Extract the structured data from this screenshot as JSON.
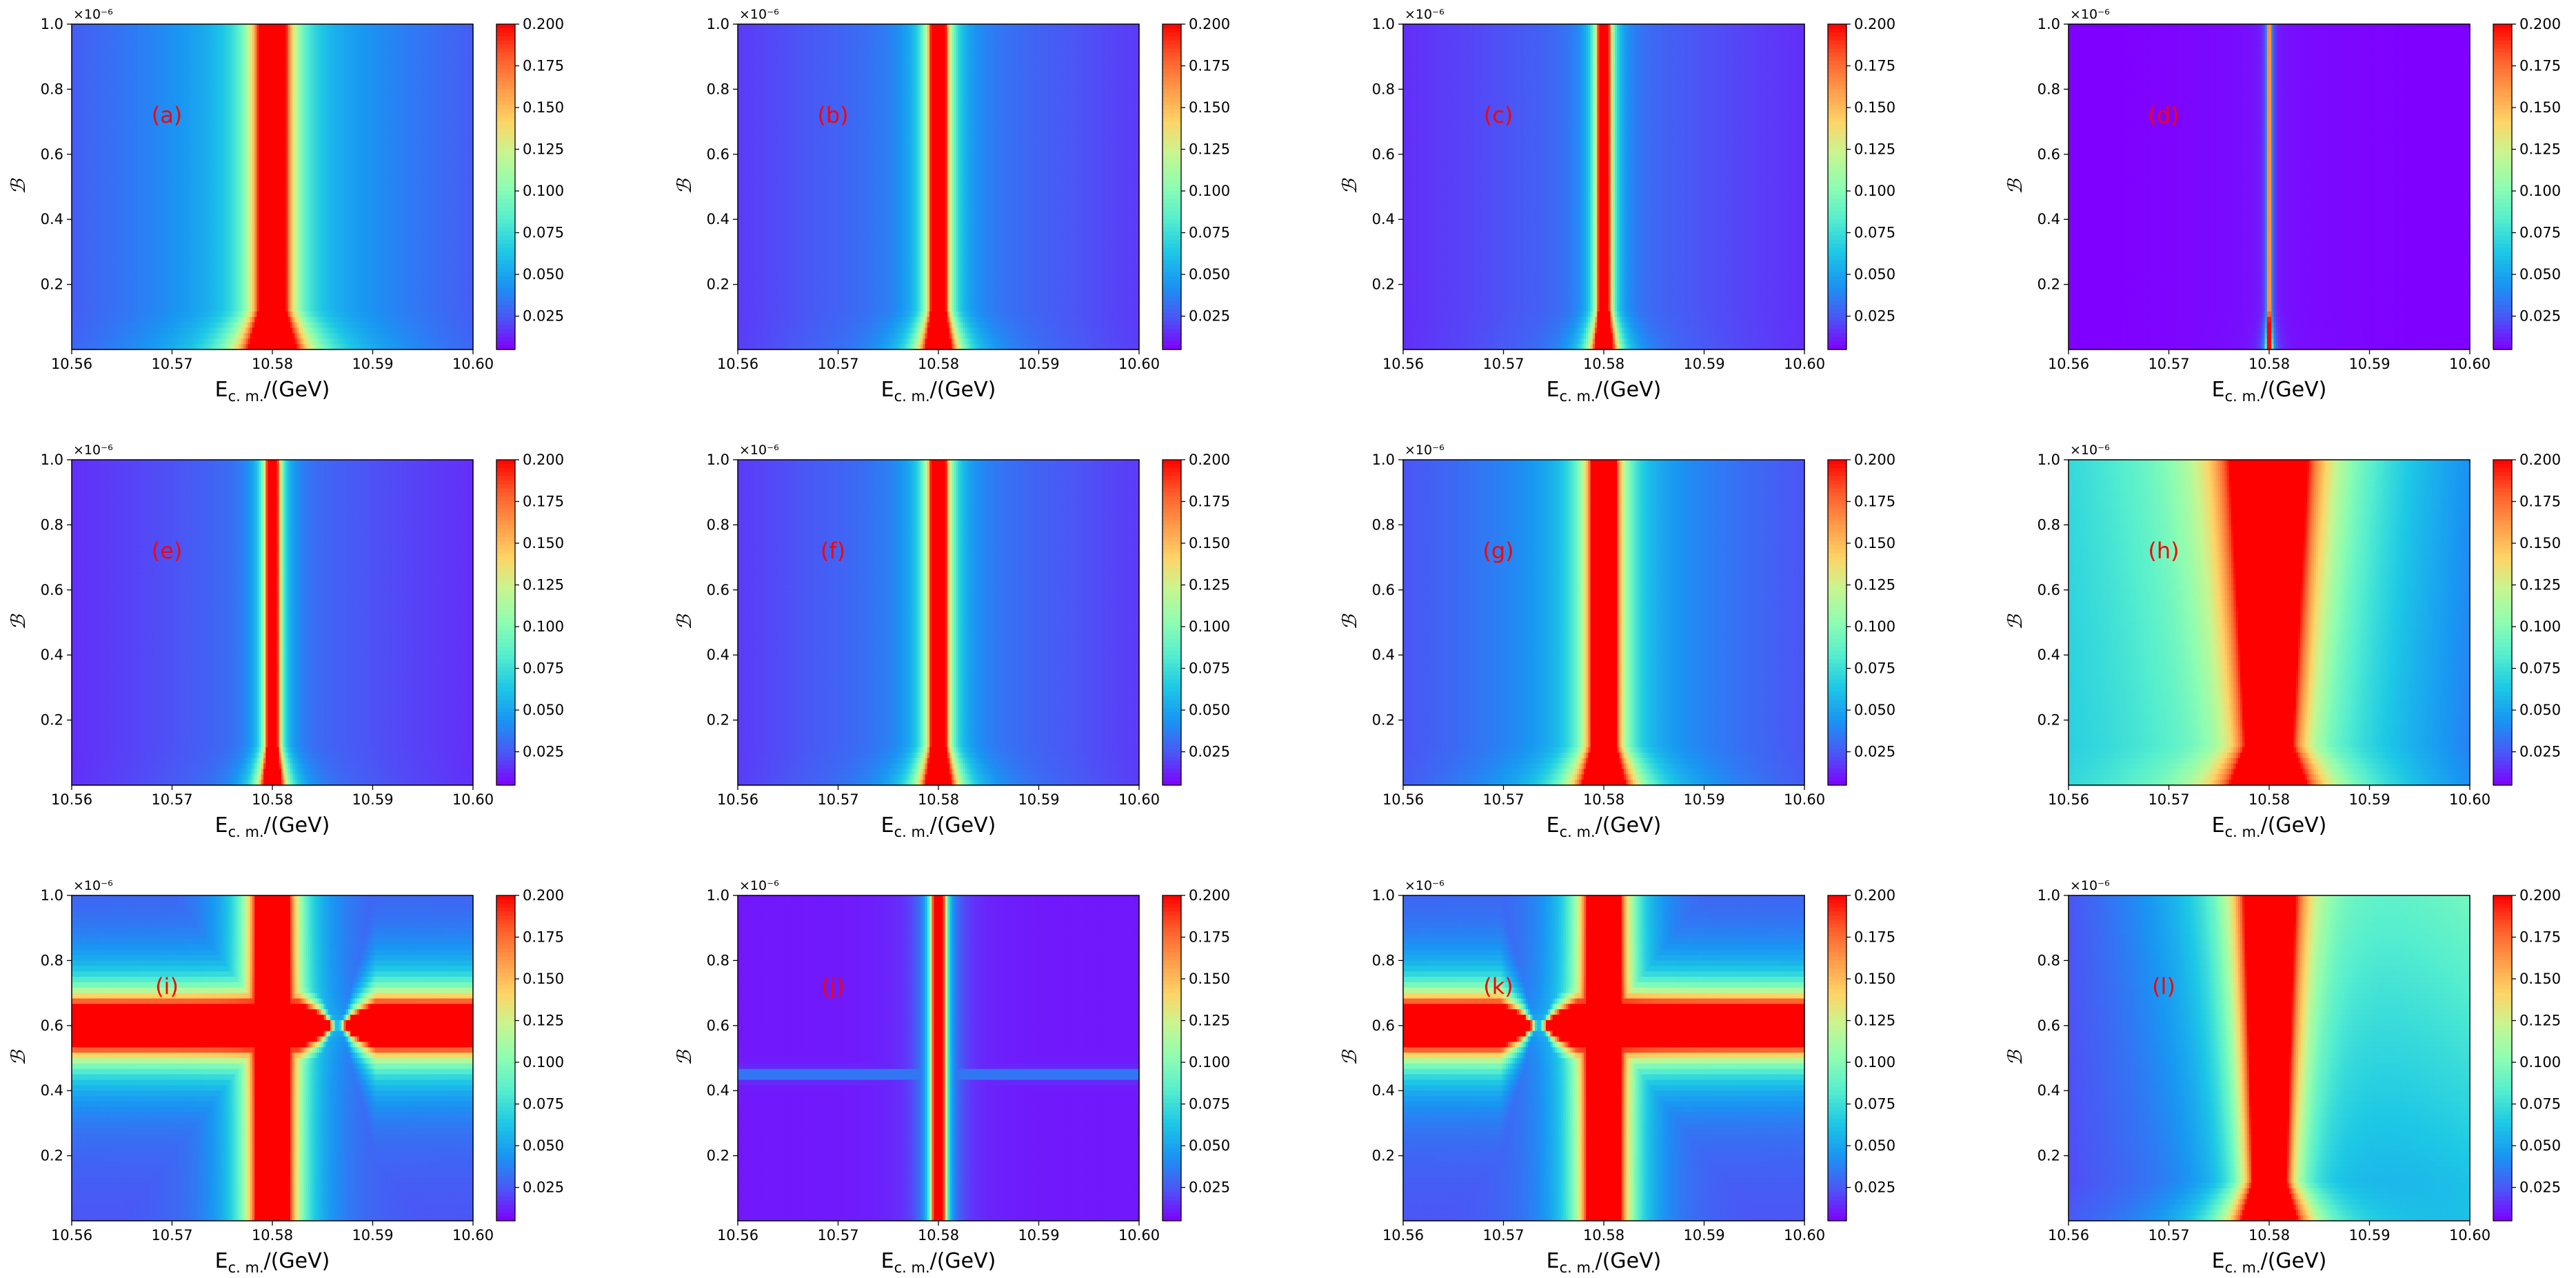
{
  "figure": {
    "panels_label_color": "#ff0000",
    "colormap": [
      "#8000ff",
      "#4a58f5",
      "#1996f3",
      "#1dc8e5",
      "#55eecf",
      "#8dfdb1",
      "#c6f691",
      "#ffd466",
      "#ff9a49",
      "#ff5a2a",
      "#ff0000"
    ]
  },
  "chart_data": [
    {
      "type": "heatmap",
      "label": "(a)",
      "xlabel_main": "E",
      "xlabel_sub": "c. m.",
      "xlabel_unit": "/(GeV)",
      "ylabel": "ℬ",
      "y_offset": "×10⁻⁶",
      "xlim": [
        10.56,
        10.6
      ],
      "ylim": [
        0,
        1.0
      ],
      "x_ticks": [
        "10.56",
        "10.57",
        "10.58",
        "10.59",
        "10.60"
      ],
      "y_ticks": [
        "0.2",
        "0.4",
        "0.6",
        "0.8",
        "1.0"
      ],
      "colorbar_ticks": [
        "0.025",
        "0.050",
        "0.075",
        "0.100",
        "0.125",
        "0.150",
        "0.175",
        "0.200"
      ],
      "clim": [
        0.005,
        0.2
      ],
      "model": "vertical",
      "center": 10.58,
      "width": 0.0012,
      "background": 0.05
    },
    {
      "type": "heatmap",
      "label": "(b)",
      "xlabel_main": "E",
      "xlabel_sub": "c. m.",
      "xlabel_unit": "/(GeV)",
      "ylabel": "ℬ",
      "y_offset": "×10⁻⁶",
      "xlim": [
        10.56,
        10.6
      ],
      "ylim": [
        0,
        1.0
      ],
      "x_ticks": [
        "10.56",
        "10.57",
        "10.58",
        "10.59",
        "10.60"
      ],
      "y_ticks": [
        "0.2",
        "0.4",
        "0.6",
        "0.8",
        "1.0"
      ],
      "colorbar_ticks": [
        "0.025",
        "0.050",
        "0.075",
        "0.100",
        "0.125",
        "0.150",
        "0.175",
        "0.200"
      ],
      "clim": [
        0.005,
        0.2
      ],
      "model": "vertical",
      "center": 10.58,
      "width": 0.0007,
      "background": 0.035
    },
    {
      "type": "heatmap",
      "label": "(c)",
      "xlabel_main": "E",
      "xlabel_sub": "c. m.",
      "xlabel_unit": "/(GeV)",
      "ylabel": "ℬ",
      "y_offset": "×10⁻⁶",
      "xlim": [
        10.56,
        10.6
      ],
      "ylim": [
        0,
        1.0
      ],
      "x_ticks": [
        "10.56",
        "10.57",
        "10.58",
        "10.59",
        "10.60"
      ],
      "y_ticks": [
        "0.2",
        "0.4",
        "0.6",
        "0.8",
        "1.0"
      ],
      "colorbar_ticks": [
        "0.025",
        "0.050",
        "0.075",
        "0.100",
        "0.125",
        "0.150",
        "0.175",
        "0.200"
      ],
      "clim": [
        0.005,
        0.2
      ],
      "model": "vertical",
      "center": 10.58,
      "width": 0.0005,
      "background": 0.03
    },
    {
      "type": "heatmap",
      "label": "(d)",
      "xlabel_main": "E",
      "xlabel_sub": "c. m.",
      "xlabel_unit": "/(GeV)",
      "ylabel": "ℬ",
      "y_offset": "×10⁻⁶",
      "xlim": [
        10.56,
        10.6
      ],
      "ylim": [
        0,
        1.0
      ],
      "x_ticks": [
        "10.56",
        "10.57",
        "10.58",
        "10.59",
        "10.60"
      ],
      "y_ticks": [
        "0.2",
        "0.4",
        "0.6",
        "0.8",
        "1.0"
      ],
      "colorbar_ticks": [
        "0.025",
        "0.050",
        "0.075",
        "0.100",
        "0.125",
        "0.150",
        "0.175",
        "0.200"
      ],
      "clim": [
        0.005,
        0.2
      ],
      "model": "vertical",
      "center": 10.58,
      "width": 0.0001,
      "background": 0.008
    },
    {
      "type": "heatmap",
      "label": "(e)",
      "xlabel_main": "E",
      "xlabel_sub": "c. m.",
      "xlabel_unit": "/(GeV)",
      "ylabel": "ℬ",
      "y_offset": "×10⁻⁶",
      "xlim": [
        10.56,
        10.6
      ],
      "ylim": [
        0,
        1.0
      ],
      "x_ticks": [
        "10.56",
        "10.57",
        "10.58",
        "10.59",
        "10.60"
      ],
      "y_ticks": [
        "0.2",
        "0.4",
        "0.6",
        "0.8",
        "1.0"
      ],
      "colorbar_ticks": [
        "0.025",
        "0.050",
        "0.075",
        "0.100",
        "0.125",
        "0.150",
        "0.175",
        "0.200"
      ],
      "clim": [
        0.005,
        0.2
      ],
      "model": "vertical",
      "center": 10.58,
      "width": 0.0005,
      "background": 0.03
    },
    {
      "type": "heatmap",
      "label": "(f)",
      "xlabel_main": "E",
      "xlabel_sub": "c. m.",
      "xlabel_unit": "/(GeV)",
      "ylabel": "ℬ",
      "y_offset": "×10⁻⁶",
      "xlim": [
        10.56,
        10.6
      ],
      "ylim": [
        0,
        1.0
      ],
      "x_ticks": [
        "10.56",
        "10.57",
        "10.58",
        "10.59",
        "10.60"
      ],
      "y_ticks": [
        "0.2",
        "0.4",
        "0.6",
        "0.8",
        "1.0"
      ],
      "colorbar_ticks": [
        "0.025",
        "0.050",
        "0.075",
        "0.100",
        "0.125",
        "0.150",
        "0.175",
        "0.200"
      ],
      "clim": [
        0.005,
        0.2
      ],
      "model": "vertical",
      "center": 10.58,
      "width": 0.0007,
      "background": 0.035
    },
    {
      "type": "heatmap",
      "label": "(g)",
      "xlabel_main": "E",
      "xlabel_sub": "c. m.",
      "xlabel_unit": "/(GeV)",
      "ylabel": "ℬ",
      "y_offset": "×10⁻⁶",
      "xlim": [
        10.56,
        10.6
      ],
      "ylim": [
        0,
        1.0
      ],
      "x_ticks": [
        "10.56",
        "10.57",
        "10.58",
        "10.59",
        "10.60"
      ],
      "y_ticks": [
        "0.2",
        "0.4",
        "0.6",
        "0.8",
        "1.0"
      ],
      "colorbar_ticks": [
        "0.025",
        "0.050",
        "0.075",
        "0.100",
        "0.125",
        "0.150",
        "0.175",
        "0.200"
      ],
      "clim": [
        0.005,
        0.2
      ],
      "model": "vertical",
      "center": 10.58,
      "width": 0.0011,
      "background": 0.045
    },
    {
      "type": "heatmap",
      "label": "(h)",
      "xlabel_main": "E",
      "xlabel_sub": "c. m.",
      "xlabel_unit": "/(GeV)",
      "ylabel": "ℬ",
      "y_offset": "×10⁻⁶",
      "xlim": [
        10.56,
        10.6
      ],
      "ylim": [
        0,
        1.0
      ],
      "x_ticks": [
        "10.56",
        "10.57",
        "10.58",
        "10.59",
        "10.60"
      ],
      "y_ticks": [
        "0.2",
        "0.4",
        "0.6",
        "0.8",
        "1.0"
      ],
      "colorbar_ticks": [
        "0.025",
        "0.050",
        "0.075",
        "0.100",
        "0.125",
        "0.150",
        "0.175",
        "0.200"
      ],
      "clim": [
        0.005,
        0.2
      ],
      "model": "vertical_wide",
      "center": 10.58,
      "width": 0.0022,
      "background": 0.07
    },
    {
      "type": "heatmap",
      "label": "(i)",
      "xlabel_main": "E",
      "xlabel_sub": "c. m.",
      "xlabel_unit": "/(GeV)",
      "ylabel": "ℬ",
      "y_offset": "×10⁻⁶",
      "xlim": [
        10.56,
        10.6
      ],
      "ylim": [
        0,
        1.0
      ],
      "x_ticks": [
        "10.56",
        "10.57",
        "10.58",
        "10.59",
        "10.60"
      ],
      "y_ticks": [
        "0.2",
        "0.4",
        "0.6",
        "0.8",
        "1.0"
      ],
      "colorbar_ticks": [
        "0.025",
        "0.050",
        "0.075",
        "0.100",
        "0.125",
        "0.150",
        "0.175",
        "0.200"
      ],
      "clim": [
        0.005,
        0.2
      ],
      "model": "cross",
      "center": 10.58,
      "band_y": 0.6,
      "null_x": 10.5865,
      "width": 0.0015,
      "background": 0.04
    },
    {
      "type": "heatmap",
      "label": "(j)",
      "xlabel_main": "E",
      "xlabel_sub": "c. m.",
      "xlabel_unit": "/(GeV)",
      "ylabel": "ℬ",
      "y_offset": "×10⁻⁶",
      "xlim": [
        10.56,
        10.6
      ],
      "ylim": [
        0,
        1.0
      ],
      "x_ticks": [
        "10.56",
        "10.57",
        "10.58",
        "10.59",
        "10.60"
      ],
      "y_ticks": [
        "0.2",
        "0.4",
        "0.6",
        "0.8",
        "1.0"
      ],
      "colorbar_ticks": [
        "0.025",
        "0.050",
        "0.075",
        "0.100",
        "0.125",
        "0.150",
        "0.175",
        "0.200"
      ],
      "clim": [
        0.005,
        0.2
      ],
      "model": "thin_cross",
      "center": 10.58,
      "band_y": 0.45,
      "width": 0.0006,
      "background": 0.01
    },
    {
      "type": "heatmap",
      "label": "(k)",
      "xlabel_main": "E",
      "xlabel_sub": "c. m.",
      "xlabel_unit": "/(GeV)",
      "ylabel": "ℬ",
      "y_offset": "×10⁻⁶",
      "xlim": [
        10.56,
        10.6
      ],
      "ylim": [
        0,
        1.0
      ],
      "x_ticks": [
        "10.56",
        "10.57",
        "10.58",
        "10.59",
        "10.60"
      ],
      "y_ticks": [
        "0.2",
        "0.4",
        "0.6",
        "0.8",
        "1.0"
      ],
      "colorbar_ticks": [
        "0.025",
        "0.050",
        "0.075",
        "0.100",
        "0.125",
        "0.150",
        "0.175",
        "0.200"
      ],
      "clim": [
        0.005,
        0.2
      ],
      "model": "cross",
      "center": 10.58,
      "band_y": 0.6,
      "null_x": 10.5735,
      "width": 0.0015,
      "background": 0.04
    },
    {
      "type": "heatmap",
      "label": "(l)",
      "xlabel_main": "E",
      "xlabel_sub": "c. m.",
      "xlabel_unit": "/(GeV)",
      "ylabel": "ℬ",
      "y_offset": "×10⁻⁶",
      "xlim": [
        10.56,
        10.6
      ],
      "ylim": [
        0,
        1.0
      ],
      "x_ticks": [
        "10.56",
        "10.57",
        "10.58",
        "10.59",
        "10.60"
      ],
      "y_ticks": [
        "0.2",
        "0.4",
        "0.6",
        "0.8",
        "1.0"
      ],
      "colorbar_ticks": [
        "0.025",
        "0.050",
        "0.075",
        "0.100",
        "0.125",
        "0.150",
        "0.175",
        "0.200"
      ],
      "clim": [
        0.005,
        0.2
      ],
      "model": "vertical_wide_right",
      "center": 10.58,
      "width": 0.0018,
      "background": 0.07
    }
  ]
}
